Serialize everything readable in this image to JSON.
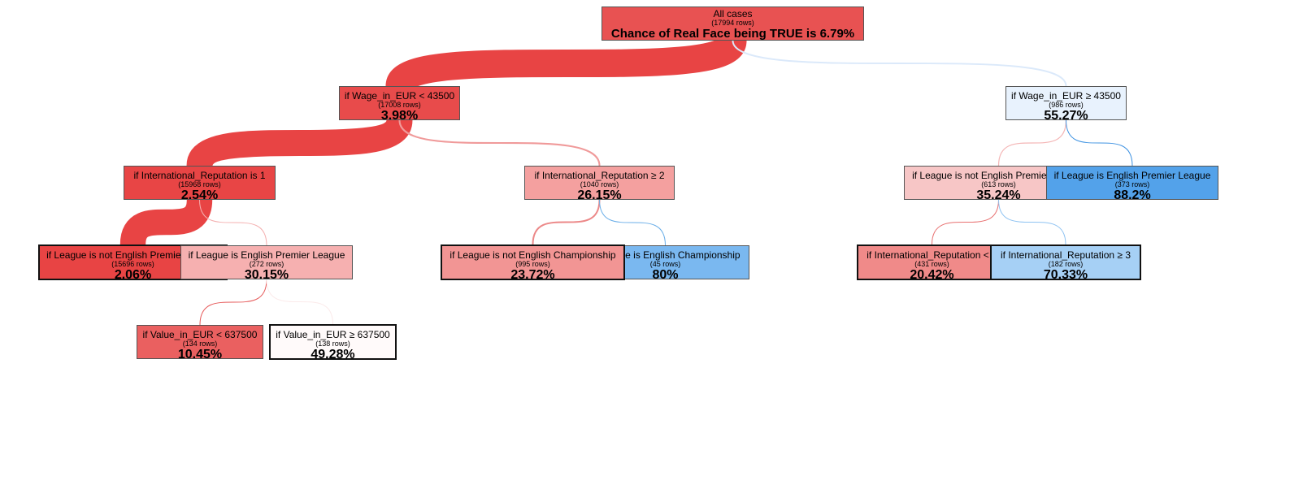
{
  "tree": {
    "root": {
      "condition": "All cases",
      "rows": "(17994 rows)",
      "value": "Chance of Real Face being TRUE is 6.79%",
      "color": "#e85252"
    },
    "nodes": [
      {
        "id": "wage-lt",
        "condition": "if Wage_in_EUR < 43500",
        "rows": "(17008 rows)",
        "value": "3.98%",
        "color": "#e84b4b"
      },
      {
        "id": "wage-ge",
        "condition": "if Wage_in_EUR ≥ 43500",
        "rows": "(986 rows)",
        "value": "55.27%",
        "color": "#e8f2fd"
      },
      {
        "id": "ir-is-1",
        "condition": "if International_Reputation is 1",
        "rows": "(15968 rows)",
        "value": "2.54%",
        "color": "#e84545"
      },
      {
        "id": "ir-ge-2",
        "condition": "if International_Reputation ≥ 2",
        "rows": "(1040 rows)",
        "value": "26.15%",
        "color": "#f4a09f"
      },
      {
        "id": "lg-not-epl-a",
        "condition": "if League is not English Premier League",
        "rows": "(15696 rows)",
        "value": "2.06%",
        "color": "#e84444"
      },
      {
        "id": "lg-epl-a",
        "condition": "if League is English Premier League",
        "rows": "(272 rows)",
        "value": "30.15%",
        "color": "#f6b0b0"
      },
      {
        "id": "lg-not-ech",
        "condition": "if League is not English Championship",
        "rows": "(995 rows)",
        "value": "23.72%",
        "color": "#f29594"
      },
      {
        "id": "lg-ech",
        "condition": "if League is English Championship",
        "rows": "(45 rows)",
        "value": "80%",
        "color": "#7ab8f0"
      },
      {
        "id": "val-lt",
        "condition": "if Value_in_EUR < 637500",
        "rows": "(134 rows)",
        "value": "10.45%",
        "color": "#ea6060"
      },
      {
        "id": "val-ge",
        "condition": "if Value_in_EUR ≥ 637500",
        "rows": "(138 rows)",
        "value": "49.28%",
        "color": "#fffafa"
      },
      {
        "id": "lg-not-epl-b",
        "condition": "if League is not English Premier League",
        "rows": "(613 rows)",
        "value": "35.24%",
        "color": "#f7c6c6"
      },
      {
        "id": "lg-epl-b",
        "condition": "if League is English Premier League",
        "rows": "(373 rows)",
        "value": "88.2%",
        "color": "#53a2ea"
      },
      {
        "id": "ir-lt-3",
        "condition": "if International_Reputation < 3",
        "rows": "(431 rows)",
        "value": "20.42%",
        "color": "#f08a89"
      },
      {
        "id": "ir-ge-3",
        "condition": "if International_Reputation ≥ 3",
        "rows": "(182 rows)",
        "value": "70.33%",
        "color": "#a6d0f5"
      }
    ],
    "links": [
      {
        "from": "root",
        "to": "wage-lt",
        "rows": 17008,
        "color": "#e84444"
      },
      {
        "from": "root",
        "to": "wage-ge",
        "rows": 986,
        "color": "#dbe9fa"
      },
      {
        "from": "wage-lt",
        "to": "ir-is-1",
        "rows": 15968,
        "color": "#e84444"
      },
      {
        "from": "wage-lt",
        "to": "ir-ge-2",
        "rows": 1040,
        "color": "#f09a9a"
      },
      {
        "from": "ir-is-1",
        "to": "lg-not-epl-a",
        "rows": 15696,
        "color": "#e84444"
      },
      {
        "from": "ir-is-1",
        "to": "lg-epl-a",
        "rows": 272,
        "color": "#f4b0b0"
      },
      {
        "from": "ir-ge-2",
        "to": "lg-not-ech",
        "rows": 995,
        "color": "#ec8888"
      },
      {
        "from": "ir-ge-2",
        "to": "lg-ech",
        "rows": 45,
        "color": "#6aaee8"
      },
      {
        "from": "lg-epl-a",
        "to": "val-lt",
        "rows": 134,
        "color": "#e65a5a"
      },
      {
        "from": "lg-epl-a",
        "to": "val-ge",
        "rows": 138,
        "color": "#fbeaea"
      },
      {
        "from": "wage-ge",
        "to": "lg-not-epl-b",
        "rows": 613,
        "color": "#f4b6b6"
      },
      {
        "from": "wage-ge",
        "to": "lg-epl-b",
        "rows": 373,
        "color": "#3f93e2"
      },
      {
        "from": "lg-not-epl-b",
        "to": "ir-lt-3",
        "rows": 431,
        "color": "#e87070"
      },
      {
        "from": "lg-not-epl-b",
        "to": "ir-ge-3",
        "rows": 182,
        "color": "#8fc3f2"
      }
    ]
  }
}
